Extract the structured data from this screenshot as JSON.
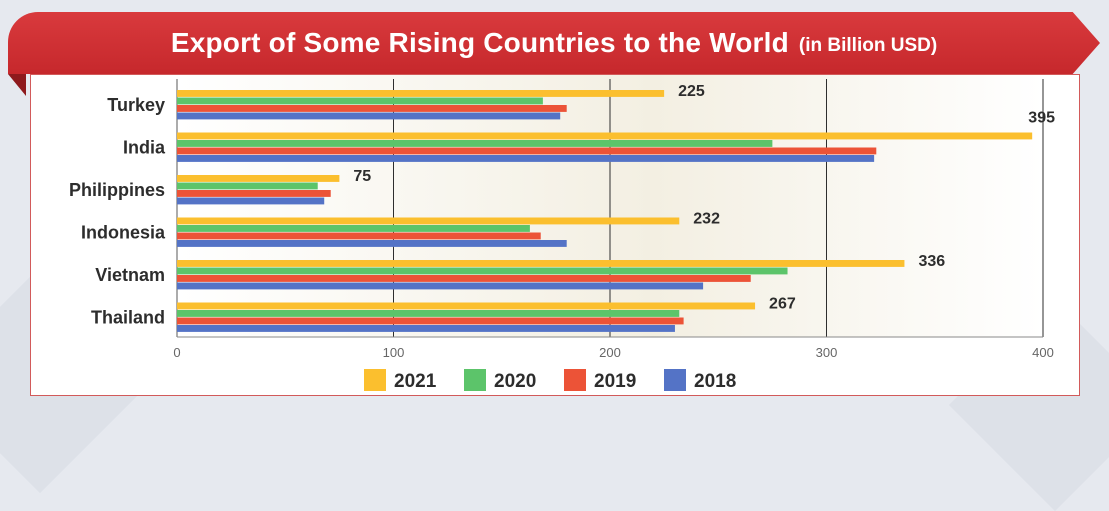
{
  "title": "Export of Some Rising Countries to the World",
  "subtitle": "(in Billion USD)",
  "colors": {
    "2021": "#fbbf2e",
    "2020": "#5cc46a",
    "2019": "#ec5337",
    "2018": "#5473c6",
    "banner": "#cf3034"
  },
  "chart_data": {
    "type": "bar",
    "orientation": "horizontal",
    "categories": [
      "Turkey",
      "India",
      "Philippines",
      "Indonesia",
      "Vietnam",
      "Thailand"
    ],
    "series": [
      {
        "name": "2021",
        "values": [
          225,
          395,
          75,
          232,
          336,
          267
        ]
      },
      {
        "name": "2020",
        "values": [
          169,
          275,
          65,
          163,
          282,
          232
        ]
      },
      {
        "name": "2019",
        "values": [
          180,
          323,
          71,
          168,
          265,
          234
        ]
      },
      {
        "name": "2018",
        "values": [
          177,
          322,
          68,
          180,
          243,
          230
        ]
      }
    ],
    "data_labels": [
      "225",
      "395",
      "75",
      "232",
      "336",
      "267"
    ],
    "xticks": [
      "0",
      "100",
      "200",
      "300",
      "400"
    ],
    "xlim": [
      0,
      400
    ],
    "grid": true,
    "legend": "bottom-center"
  }
}
